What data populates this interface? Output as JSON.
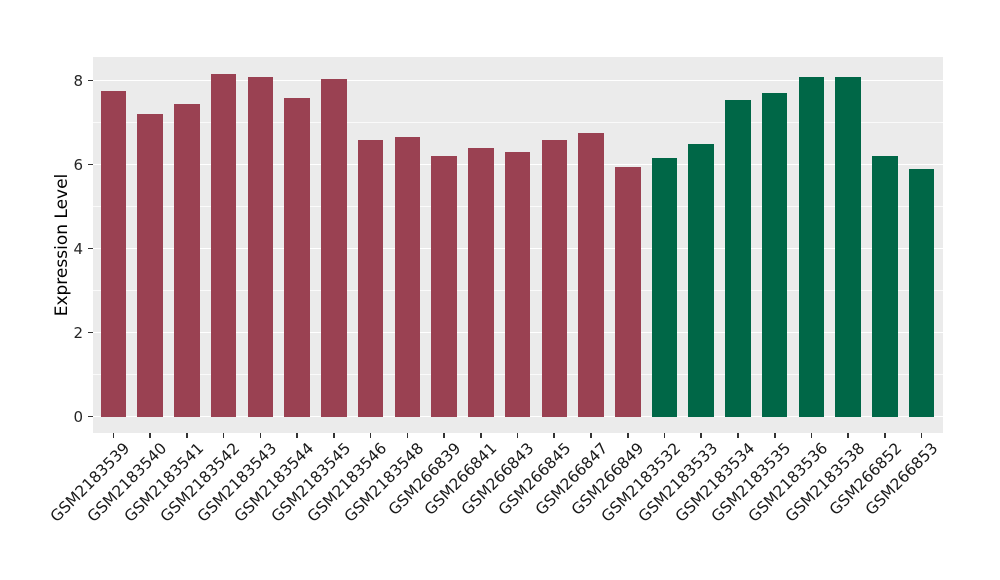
{
  "chart_data": {
    "type": "bar",
    "title": "",
    "xlabel": "",
    "ylabel": "Expression Level",
    "ylim": [
      0,
      8.6
    ],
    "yticks": [
      0,
      2,
      4,
      6,
      8
    ],
    "minor_yticks": [
      1,
      3,
      5,
      7
    ],
    "grid": true,
    "legend_position": "none",
    "panel_background": "#EBEBEB",
    "gridline_color": "#FFFFFF",
    "axis_text_color": "#262626",
    "tick_mark_color": "#333333",
    "categories": [
      "GSM2183539",
      "GSM2183540",
      "GSM2183541",
      "GSM2183542",
      "GSM2183543",
      "GSM2183544",
      "GSM2183545",
      "GSM2183546",
      "GSM2183548",
      "GSM266839",
      "GSM266841",
      "GSM266843",
      "GSM266845",
      "GSM266847",
      "GSM266849",
      "GSM2183532",
      "GSM2183533",
      "GSM2183534",
      "GSM2183535",
      "GSM2183536",
      "GSM2183538",
      "GSM266852",
      "GSM266853"
    ],
    "values": [
      7.75,
      7.2,
      7.45,
      8.15,
      8.1,
      7.6,
      8.05,
      6.6,
      6.65,
      6.2,
      6.4,
      6.3,
      6.6,
      6.75,
      5.95,
      6.15,
      6.5,
      7.55,
      7.7,
      8.1,
      8.1,
      6.2,
      5.9
    ],
    "groups": [
      "group1",
      "group1",
      "group1",
      "group1",
      "group1",
      "group1",
      "group1",
      "group1",
      "group1",
      "group1",
      "group1",
      "group1",
      "group1",
      "group1",
      "group1",
      "group2",
      "group2",
      "group2",
      "group2",
      "group2",
      "group2",
      "group2",
      "group2"
    ],
    "group_colors": {
      "group1": "#9A4152",
      "group2": "#006747"
    }
  }
}
